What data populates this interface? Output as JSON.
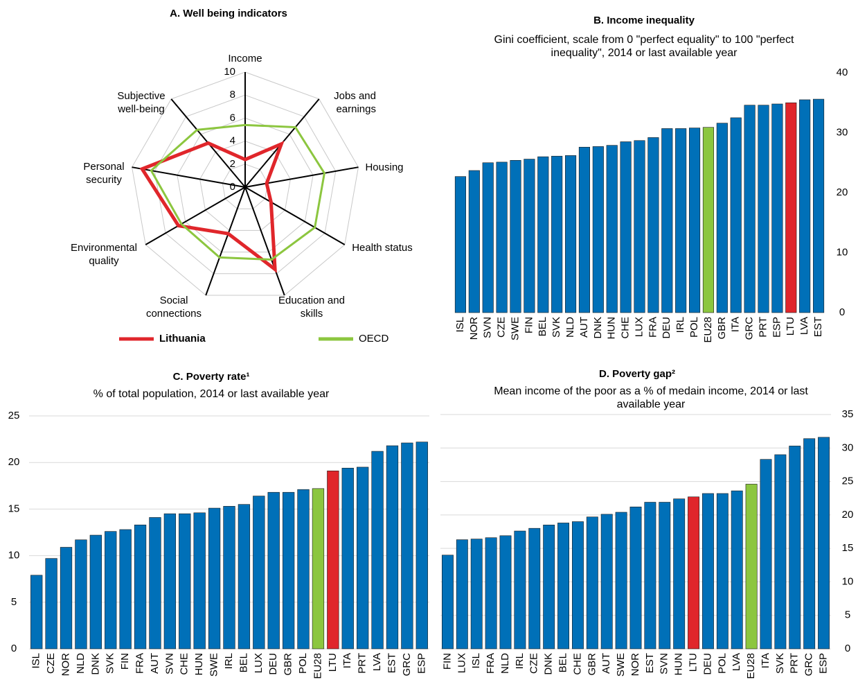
{
  "chart_data": [
    {
      "type": "radar",
      "title": "A. Well being indicators",
      "categories": [
        "Income",
        "Jobs and earnings",
        "Housing",
        "Health status",
        "Education and skills",
        "Social connections",
        "Environmental quality",
        "Personal security",
        "Subjective well-being"
      ],
      "series": [
        {
          "name": "Lithuania",
          "color": "#e0262b",
          "values": [
            2.4,
            4.9,
            1.9,
            2.6,
            7.6,
            4.3,
            6.7,
            9.1,
            5.0
          ]
        },
        {
          "name": "OECD",
          "color": "#8cc63f",
          "values": [
            5.4,
            6.8,
            7.0,
            7.0,
            6.7,
            6.5,
            6.4,
            8.3,
            6.5
          ]
        }
      ],
      "ylim": [
        0,
        10
      ],
      "yticks": [
        0,
        2,
        4,
        6,
        8,
        10
      ],
      "grid": true,
      "legend": "bottom"
    },
    {
      "type": "bar",
      "title": "B. Income inequality",
      "subtitle": "Gini coefficient, scale from 0 \"perfect equality\" to 100 \"perfect inequality\", 2014 or last available year",
      "categories": [
        "ISL",
        "NOR",
        "SVN",
        "CZE",
        "SWE",
        "FIN",
        "BEL",
        "SVK",
        "NLD",
        "AUT",
        "DNK",
        "HUN",
        "CHE",
        "LUX",
        "FRA",
        "DEU",
        "IRL",
        "POL",
        "EU28",
        "GBR",
        "ITA",
        "GRC",
        "PRT",
        "ESP",
        "LTU",
        "LVA",
        "EST"
      ],
      "values": [
        22.7,
        23.7,
        25.0,
        25.1,
        25.4,
        25.6,
        26.0,
        26.1,
        26.2,
        27.6,
        27.7,
        27.9,
        28.5,
        28.7,
        29.2,
        30.7,
        30.7,
        30.8,
        30.9,
        31.6,
        32.5,
        34.6,
        34.6,
        34.8,
        35.0,
        35.5,
        35.6
      ],
      "colors": [
        "#0070b8",
        "#0070b8",
        "#0070b8",
        "#0070b8",
        "#0070b8",
        "#0070b8",
        "#0070b8",
        "#0070b8",
        "#0070b8",
        "#0070b8",
        "#0070b8",
        "#0070b8",
        "#0070b8",
        "#0070b8",
        "#0070b8",
        "#0070b8",
        "#0070b8",
        "#0070b8",
        "#8cc63f",
        "#0070b8",
        "#0070b8",
        "#0070b8",
        "#0070b8",
        "#0070b8",
        "#e0262b",
        "#0070b8",
        "#0070b8"
      ],
      "ylim": [
        0,
        40
      ],
      "yticks": [
        0,
        10,
        20,
        30,
        40
      ],
      "grid": false,
      "y_axis_side": "right"
    },
    {
      "type": "bar",
      "title": "C. Poverty rate¹",
      "subtitle": "% of total population, 2014 or last available year",
      "categories": [
        "ISL",
        "CZE",
        "NOR",
        "NLD",
        "DNK",
        "SVK",
        "FIN",
        "FRA",
        "AUT",
        "SVN",
        "CHE",
        "HUN",
        "SWE",
        "IRL",
        "BEL",
        "LUX",
        "DEU",
        "GBR",
        "POL",
        "EU28",
        "LTU",
        "ITA",
        "PRT",
        "LVA",
        "EST",
        "GRC",
        "ESP"
      ],
      "values": [
        7.9,
        9.7,
        10.9,
        11.7,
        12.2,
        12.6,
        12.8,
        13.3,
        14.1,
        14.5,
        14.5,
        14.6,
        15.1,
        15.3,
        15.5,
        16.4,
        16.8,
        16.8,
        17.1,
        17.2,
        19.1,
        19.4,
        19.5,
        21.2,
        21.8,
        22.1,
        22.2
      ],
      "colors": [
        "#0070b8",
        "#0070b8",
        "#0070b8",
        "#0070b8",
        "#0070b8",
        "#0070b8",
        "#0070b8",
        "#0070b8",
        "#0070b8",
        "#0070b8",
        "#0070b8",
        "#0070b8",
        "#0070b8",
        "#0070b8",
        "#0070b8",
        "#0070b8",
        "#0070b8",
        "#0070b8",
        "#0070b8",
        "#8cc63f",
        "#e0262b",
        "#0070b8",
        "#0070b8",
        "#0070b8",
        "#0070b8",
        "#0070b8",
        "#0070b8"
      ],
      "ylim": [
        0,
        25
      ],
      "yticks": [
        0,
        5,
        10,
        15,
        20,
        25
      ],
      "grid": true,
      "y_axis_side": "left"
    },
    {
      "type": "bar",
      "title": "D. Poverty gap²",
      "subtitle": "Mean income of the poor as a % of medain income, 2014 or last available year",
      "categories": [
        "FIN",
        "LUX",
        "ISL",
        "FRA",
        "NLD",
        "IRL",
        "CZE",
        "DNK",
        "BEL",
        "CHE",
        "GBR",
        "AUT",
        "SWE",
        "NOR",
        "EST",
        "SVN",
        "HUN",
        "LTU",
        "DEU",
        "POL",
        "LVA",
        "EU28",
        "ITA",
        "SVK",
        "PRT",
        "GRC",
        "ESP"
      ],
      "values": [
        14.0,
        16.3,
        16.4,
        16.6,
        16.9,
        17.6,
        18.0,
        18.5,
        18.8,
        19.0,
        19.7,
        20.1,
        20.4,
        21.2,
        21.9,
        21.9,
        22.4,
        22.7,
        23.2,
        23.2,
        23.6,
        24.6,
        28.3,
        29.0,
        30.3,
        31.4,
        31.6
      ],
      "colors": [
        "#0070b8",
        "#0070b8",
        "#0070b8",
        "#0070b8",
        "#0070b8",
        "#0070b8",
        "#0070b8",
        "#0070b8",
        "#0070b8",
        "#0070b8",
        "#0070b8",
        "#0070b8",
        "#0070b8",
        "#0070b8",
        "#0070b8",
        "#0070b8",
        "#0070b8",
        "#e0262b",
        "#0070b8",
        "#0070b8",
        "#0070b8",
        "#8cc63f",
        "#0070b8",
        "#0070b8",
        "#0070b8",
        "#0070b8",
        "#0070b8"
      ],
      "ylim": [
        0,
        35
      ],
      "yticks": [
        0,
        5,
        10,
        15,
        20,
        25,
        30,
        35
      ],
      "grid": true,
      "y_axis_side": "right"
    }
  ]
}
